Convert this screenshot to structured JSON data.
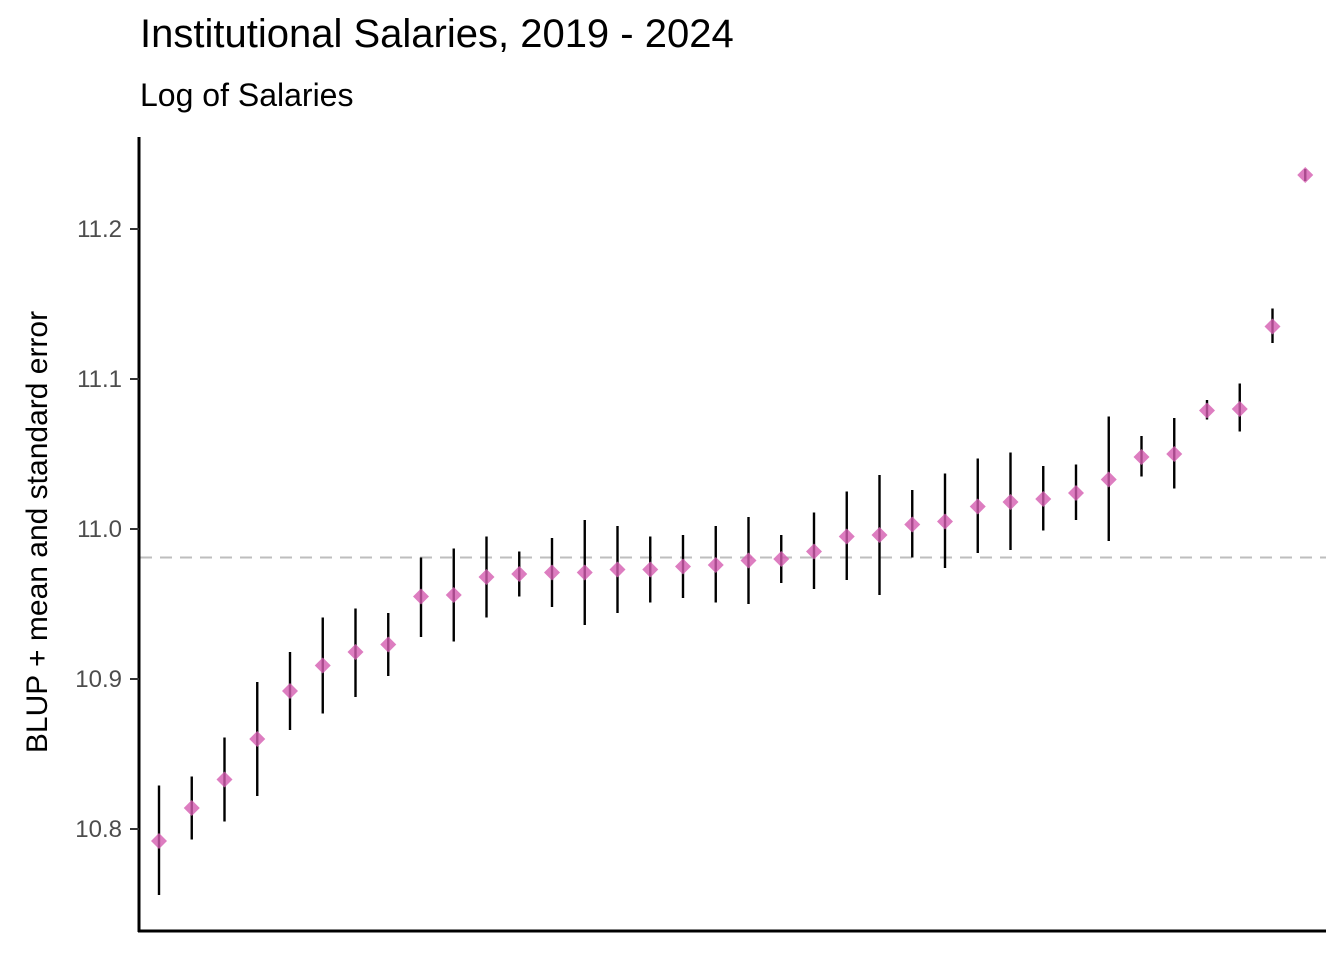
{
  "chart_data": {
    "type": "scatter",
    "title": "Institutional Salaries, 2019 - 2024",
    "subtitle": "Log of Salaries",
    "xlabel": "",
    "ylabel": "BLUP + mean and standard error",
    "ylim": [
      10.735,
      11.268
    ],
    "yticks": [
      10.8,
      10.9,
      11.0,
      11.1,
      11.2
    ],
    "ytick_labels": [
      "10.8",
      "10.9",
      "11.0",
      "11.1",
      "11.2"
    ],
    "reference_line": 10.981,
    "grid": false,
    "legend": "none",
    "point_color": "#D45DB0",
    "errorbar_color": "#000000",
    "reference_line_color": "#BEBEBE",
    "points": [
      {
        "y": 10.792,
        "low": 10.756,
        "high": 10.829
      },
      {
        "y": 10.814,
        "low": 10.793,
        "high": 10.835
      },
      {
        "y": 10.833,
        "low": 10.805,
        "high": 10.861
      },
      {
        "y": 10.86,
        "low": 10.822,
        "high": 10.898
      },
      {
        "y": 10.892,
        "low": 10.866,
        "high": 10.918
      },
      {
        "y": 10.909,
        "low": 10.877,
        "high": 10.941
      },
      {
        "y": 10.918,
        "low": 10.888,
        "high": 10.947
      },
      {
        "y": 10.923,
        "low": 10.902,
        "high": 10.944
      },
      {
        "y": 10.955,
        "low": 10.928,
        "high": 10.981
      },
      {
        "y": 10.956,
        "low": 10.925,
        "high": 10.987
      },
      {
        "y": 10.968,
        "low": 10.941,
        "high": 10.995
      },
      {
        "y": 10.97,
        "low": 10.955,
        "high": 10.985
      },
      {
        "y": 10.971,
        "low": 10.948,
        "high": 10.994
      },
      {
        "y": 10.971,
        "low": 10.936,
        "high": 11.006
      },
      {
        "y": 10.973,
        "low": 10.944,
        "high": 11.002
      },
      {
        "y": 10.973,
        "low": 10.951,
        "high": 10.995
      },
      {
        "y": 10.975,
        "low": 10.954,
        "high": 10.996
      },
      {
        "y": 10.976,
        "low": 10.951,
        "high": 11.002
      },
      {
        "y": 10.979,
        "low": 10.95,
        "high": 11.008
      },
      {
        "y": 10.98,
        "low": 10.964,
        "high": 10.996
      },
      {
        "y": 10.985,
        "low": 10.96,
        "high": 11.011
      },
      {
        "y": 10.995,
        "low": 10.966,
        "high": 11.025
      },
      {
        "y": 10.996,
        "low": 10.956,
        "high": 11.036
      },
      {
        "y": 11.003,
        "low": 10.981,
        "high": 11.026
      },
      {
        "y": 11.005,
        "low": 10.974,
        "high": 11.037
      },
      {
        "y": 11.015,
        "low": 10.984,
        "high": 11.047
      },
      {
        "y": 11.018,
        "low": 10.986,
        "high": 11.051
      },
      {
        "y": 11.02,
        "low": 10.999,
        "high": 11.042
      },
      {
        "y": 11.024,
        "low": 11.006,
        "high": 11.043
      },
      {
        "y": 11.033,
        "low": 10.992,
        "high": 11.075
      },
      {
        "y": 11.048,
        "low": 11.035,
        "high": 11.062
      },
      {
        "y": 11.05,
        "low": 11.027,
        "high": 11.074
      },
      {
        "y": 11.079,
        "low": 11.073,
        "high": 11.086
      },
      {
        "y": 11.08,
        "low": 11.065,
        "high": 11.097
      },
      {
        "y": 11.135,
        "low": 11.124,
        "high": 11.147
      },
      {
        "y": 11.236,
        "low": 11.232,
        "high": 11.24
      }
    ]
  }
}
